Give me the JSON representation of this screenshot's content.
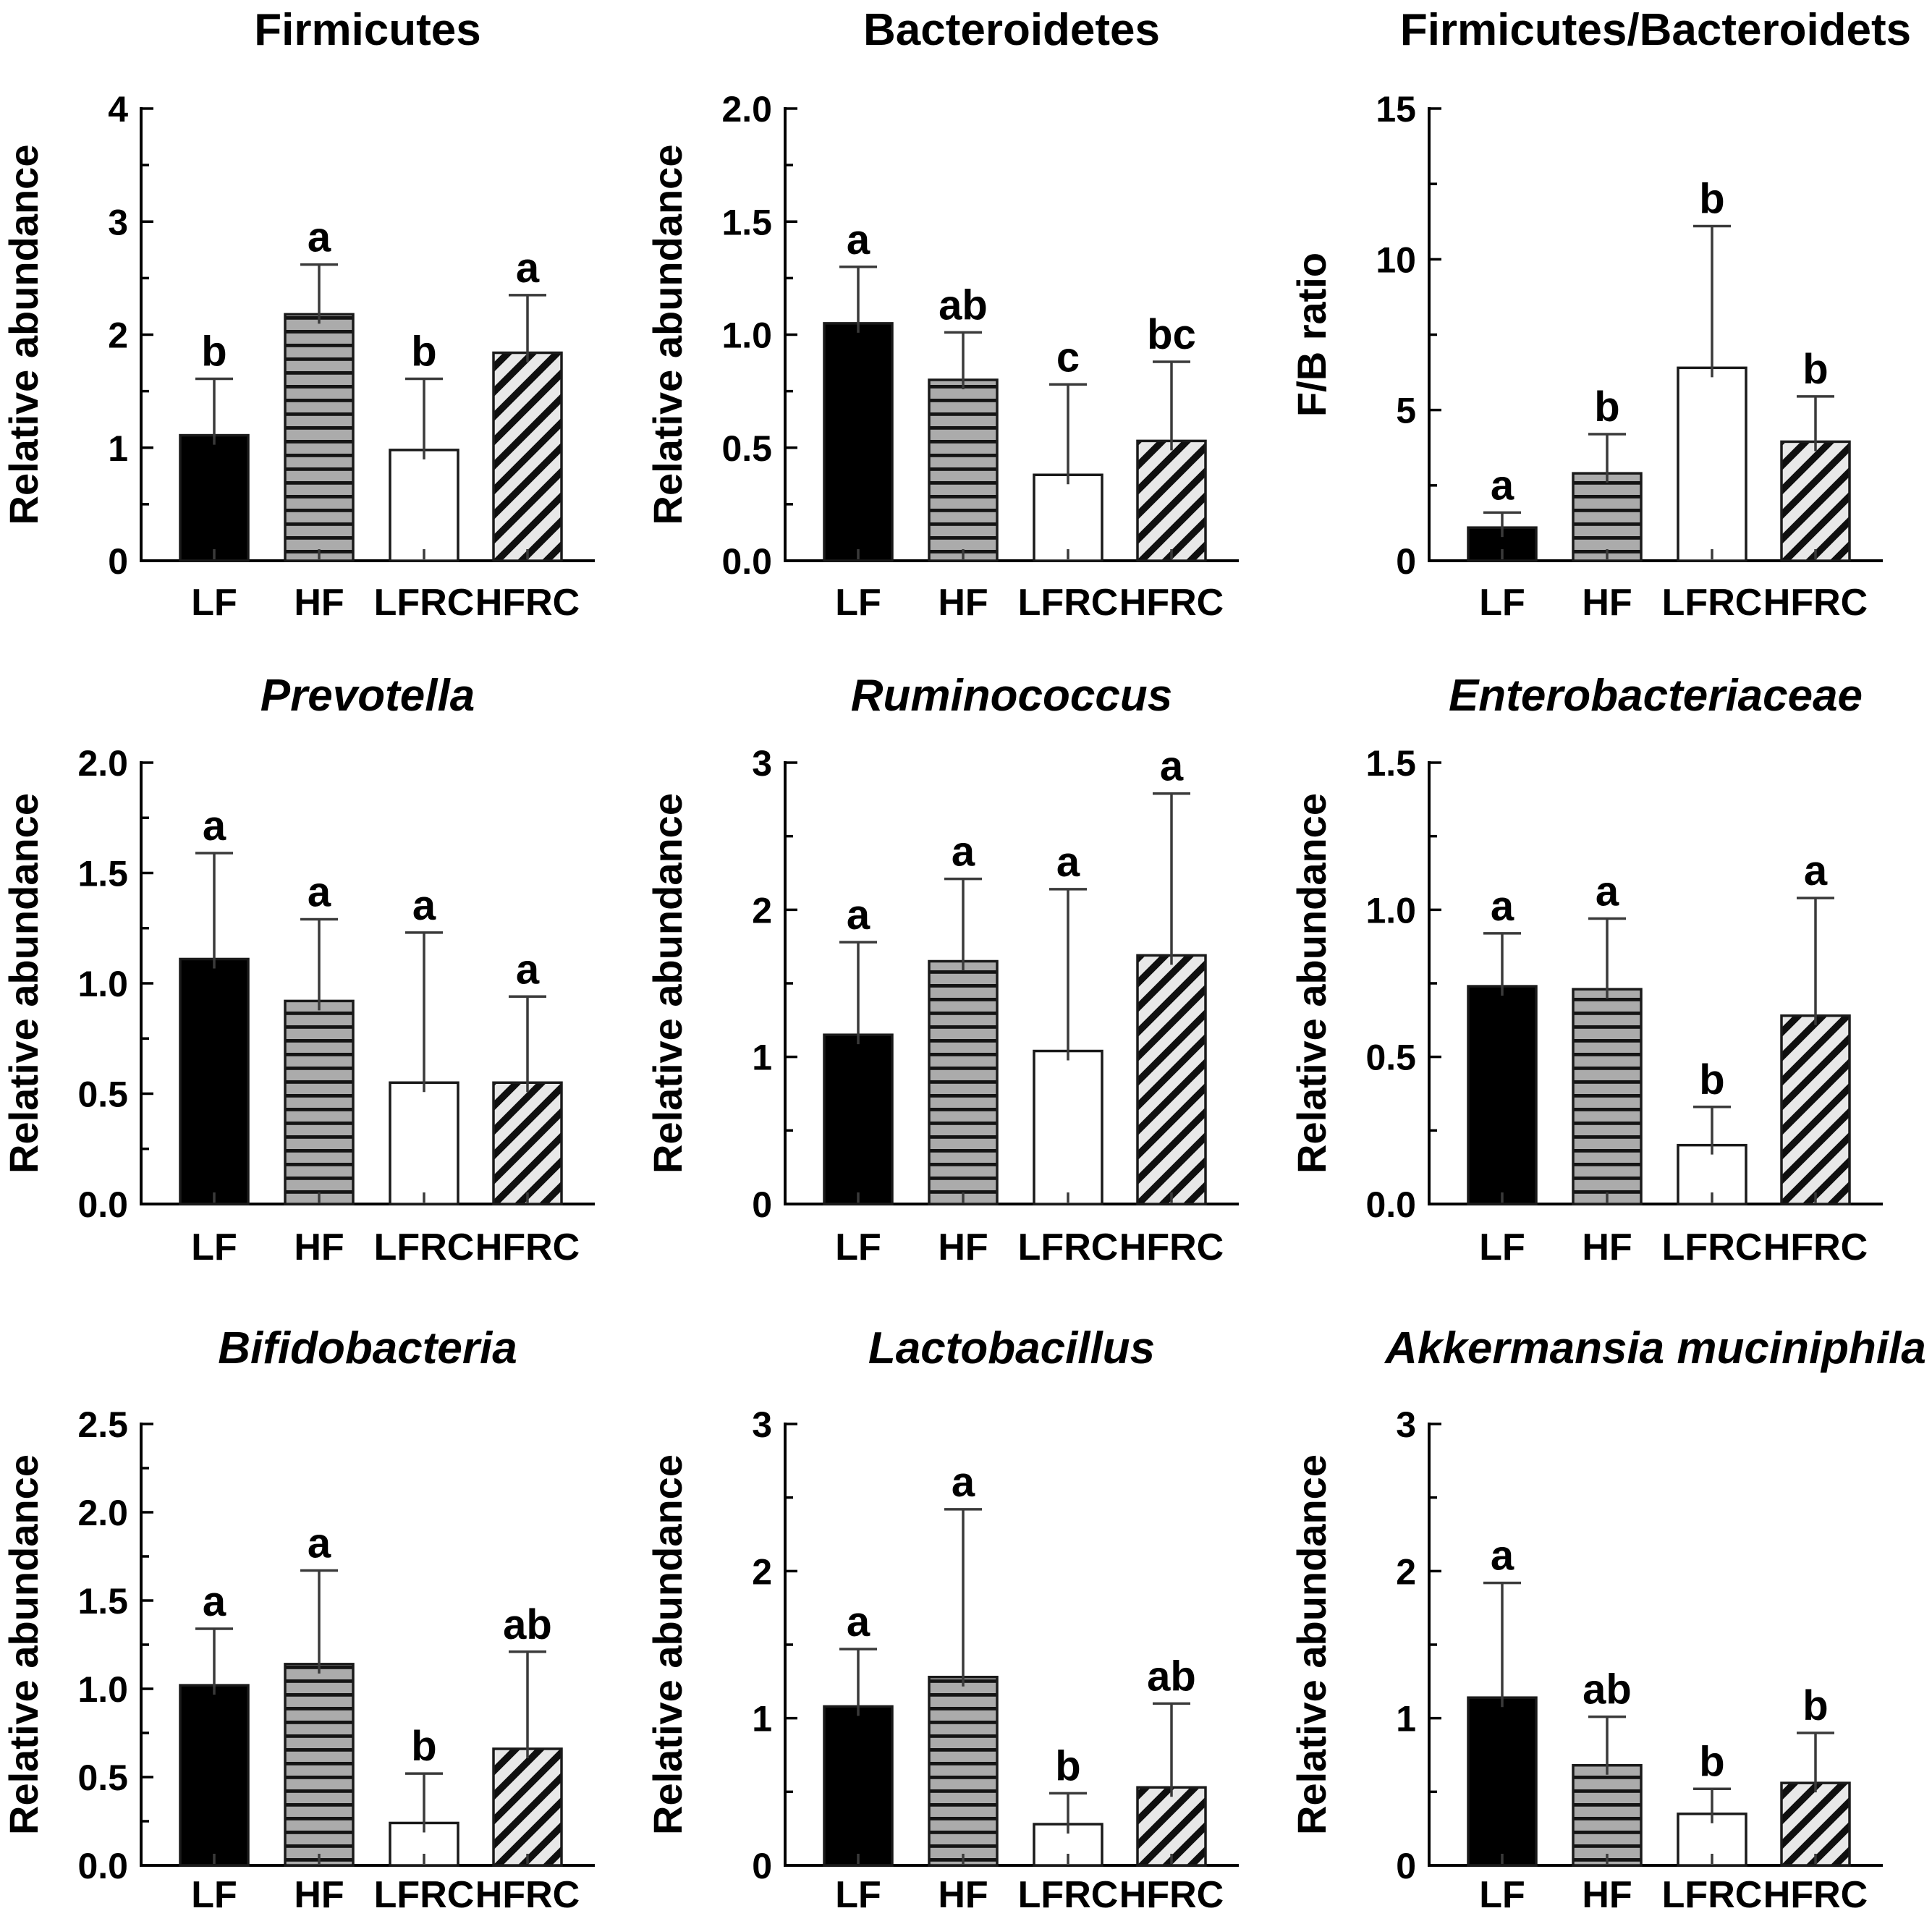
{
  "figure": {
    "groups": [
      "LF",
      "HF",
      "LFRC",
      "HFRC"
    ],
    "bar_styles": [
      "solid-black",
      "horizontal-stripes",
      "open-white",
      "diagonal-stripes"
    ],
    "colors": {
      "background": "#ffffff",
      "bar_black": "#000000",
      "bar_outline": "#1a1a1a",
      "hstripe_fill": "#ababab",
      "hstripe_line": "#141414",
      "diag_fill": "#e8e8e8",
      "diag_line": "#0f0f0f",
      "whisker": "#3a3a3a",
      "text": "#000000"
    }
  },
  "chart_data": [
    {
      "type": "bar",
      "title": "Firmicutes",
      "title_style": "normal",
      "ylabel": "Relative abundance",
      "ylim": [
        0,
        4
      ],
      "ytick_values": [
        0,
        1,
        2,
        3,
        4
      ],
      "ytick_labels": [
        "0",
        "1",
        "2",
        "3",
        "4"
      ],
      "minor_tick_step": 0.5,
      "categories": [
        "LF",
        "HF",
        "LFRC",
        "HFRC"
      ],
      "values": [
        1.11,
        2.18,
        0.98,
        1.84
      ],
      "error_top": [
        1.61,
        2.62,
        1.61,
        2.35
      ],
      "sig_letters": [
        "b",
        "a",
        "b",
        "a"
      ]
    },
    {
      "type": "bar",
      "title": "Bacteroidetes",
      "title_style": "normal",
      "ylabel": "Relative abundance",
      "ylim": [
        0,
        2
      ],
      "ytick_values": [
        0,
        0.5,
        1.0,
        1.5,
        2.0
      ],
      "ytick_labels": [
        "0.0",
        "0.5",
        "1.0",
        "1.5",
        "2.0"
      ],
      "minor_tick_step": 0.25,
      "categories": [
        "LF",
        "HF",
        "LFRC",
        "HFRC"
      ],
      "values": [
        1.05,
        0.8,
        0.38,
        0.53
      ],
      "error_top": [
        1.3,
        1.01,
        0.78,
        0.88
      ],
      "sig_letters": [
        "a",
        "ab",
        "c",
        "bc"
      ]
    },
    {
      "type": "bar",
      "title": "Firmicutes/Bacteroidets",
      "title_style": "normal",
      "ylabel": "F/B ratio",
      "ylim": [
        0,
        15
      ],
      "ytick_values": [
        0,
        5,
        10,
        15
      ],
      "ytick_labels": [
        "0",
        "5",
        "10",
        "15"
      ],
      "minor_tick_step": 2.5,
      "categories": [
        "LF",
        "HF",
        "LFRC",
        "HFRC"
      ],
      "values": [
        1.1,
        2.9,
        6.4,
        3.95
      ],
      "error_top": [
        1.6,
        4.2,
        11.1,
        5.45
      ],
      "sig_letters": [
        "a",
        "b",
        "b",
        "b"
      ]
    },
    {
      "type": "bar",
      "title": "Prevotella",
      "title_style": "italic",
      "ylabel": "Relative abundance",
      "ylim": [
        0,
        2
      ],
      "ytick_values": [
        0,
        0.5,
        1.0,
        1.5,
        2.0
      ],
      "ytick_labels": [
        "0.0",
        "0.5",
        "1.0",
        "1.5",
        "2.0"
      ],
      "minor_tick_step": 0.25,
      "categories": [
        "LF",
        "HF",
        "LFRC",
        "HFRC"
      ],
      "values": [
        1.11,
        0.92,
        0.55,
        0.55
      ],
      "error_top": [
        1.59,
        1.29,
        1.23,
        0.94
      ],
      "sig_letters": [
        "a",
        "a",
        "a",
        "a"
      ]
    },
    {
      "type": "bar",
      "title": "Ruminococcus",
      "title_style": "italic",
      "ylabel": "Relative abundance",
      "ylim": [
        0,
        3
      ],
      "ytick_values": [
        0,
        1,
        2,
        3
      ],
      "ytick_labels": [
        "0",
        "1",
        "2",
        "3"
      ],
      "minor_tick_step": 0.5,
      "categories": [
        "LF",
        "HF",
        "LFRC",
        "HFRC"
      ],
      "values": [
        1.15,
        1.65,
        1.04,
        1.69
      ],
      "error_top": [
        1.78,
        2.21,
        2.14,
        2.79
      ],
      "sig_letters": [
        "a",
        "a",
        "a",
        "a"
      ]
    },
    {
      "type": "bar",
      "title": "Enterobacteriaceae",
      "title_style": "italic",
      "ylabel": "Relative abundance",
      "ylim": [
        0,
        1.5
      ],
      "ytick_values": [
        0,
        0.5,
        1.0,
        1.5
      ],
      "ytick_labels": [
        "0.0",
        "0.5",
        "1.0",
        "1.5"
      ],
      "minor_tick_step": 0.25,
      "categories": [
        "LF",
        "HF",
        "LFRC",
        "HFRC"
      ],
      "values": [
        0.74,
        0.73,
        0.2,
        0.64
      ],
      "error_top": [
        0.92,
        0.97,
        0.33,
        1.04
      ],
      "sig_letters": [
        "a",
        "a",
        "b",
        "a"
      ]
    },
    {
      "type": "bar",
      "title": "Bifidobacteria",
      "title_style": "italic",
      "ylabel": "Relative abundance",
      "ylim": [
        0,
        2.5
      ],
      "ytick_values": [
        0,
        0.5,
        1.0,
        1.5,
        2.0,
        2.5
      ],
      "ytick_labels": [
        "0.0",
        "0.5",
        "1.0",
        "1.5",
        "2.0",
        "2.5"
      ],
      "minor_tick_step": 0.25,
      "categories": [
        "LF",
        "HF",
        "LFRC",
        "HFRC"
      ],
      "values": [
        1.02,
        1.14,
        0.24,
        0.66
      ],
      "error_top": [
        1.34,
        1.67,
        0.52,
        1.21
      ],
      "sig_letters": [
        "a",
        "a",
        "b",
        "ab"
      ]
    },
    {
      "type": "bar",
      "title": "Lactobacillus",
      "title_style": "italic",
      "ylabel": "Relative abundance",
      "ylim": [
        0,
        3
      ],
      "ytick_values": [
        0,
        1,
        2,
        3
      ],
      "ytick_labels": [
        "0",
        "1",
        "2",
        "3"
      ],
      "minor_tick_step": 0.5,
      "categories": [
        "LF",
        "HF",
        "LFRC",
        "HFRC"
      ],
      "values": [
        1.08,
        1.28,
        0.28,
        0.53
      ],
      "error_top": [
        1.47,
        2.42,
        0.49,
        1.1
      ],
      "sig_letters": [
        "a",
        "a",
        "b",
        "ab"
      ]
    },
    {
      "type": "bar",
      "title": "Akkermansia muciniphila",
      "title_style": "italic",
      "ylabel": "Relative abundance",
      "ylim": [
        0,
        3
      ],
      "ytick_values": [
        0,
        1,
        2,
        3
      ],
      "ytick_labels": [
        "0",
        "1",
        "2",
        "3"
      ],
      "minor_tick_step": 0.5,
      "categories": [
        "LF",
        "HF",
        "LFRC",
        "HFRC"
      ],
      "values": [
        1.14,
        0.68,
        0.35,
        0.56
      ],
      "error_top": [
        1.92,
        1.01,
        0.52,
        0.9
      ],
      "sig_letters": [
        "a",
        "ab",
        "b",
        "b"
      ]
    }
  ]
}
